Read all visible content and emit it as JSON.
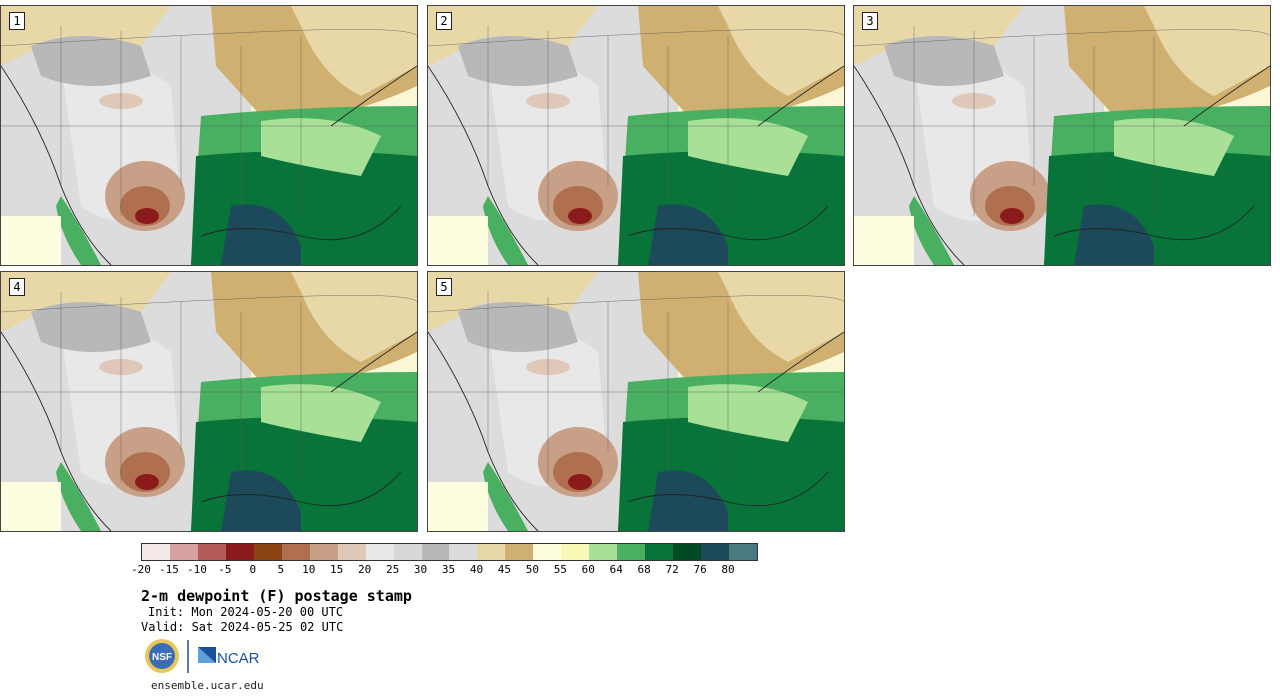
{
  "panels": [
    {
      "label": "1"
    },
    {
      "label": "2"
    },
    {
      "label": "3"
    },
    {
      "label": "4"
    },
    {
      "label": "5"
    }
  ],
  "colorbar": {
    "ticks": [
      "-20",
      "-15",
      "-10",
      "-5",
      "0",
      "5",
      "10",
      "15",
      "20",
      "25",
      "30",
      "35",
      "40",
      "45",
      "50",
      "55",
      "60",
      "64",
      "68",
      "72",
      "76",
      "80"
    ],
    "colors": [
      "#f4e8e8",
      "#d8a0a0",
      "#b55a5a",
      "#8b1a1a",
      "#8b4513",
      "#b07050",
      "#c8a088",
      "#e0c8b8",
      "#e8e8e8",
      "#d8d8d8",
      "#b8b8b8",
      "#dcdcdc",
      "#e8d8a8",
      "#d0b070",
      "#fdfde0",
      "#f8f8b8",
      "#a8e098",
      "#48b060",
      "#08743a",
      "#004a24",
      "#1c4a5a",
      "#4a7a80"
    ]
  },
  "title": "2-m dewpoint (F) postage stamp",
  "init": "Init: Mon 2024-05-20 00 UTC",
  "valid": "Valid: Sat 2024-05-25 02 UTC",
  "logos": {
    "nsf": "NSF",
    "ncar": "NCAR"
  },
  "url": "ensemble.ucar.edu"
}
